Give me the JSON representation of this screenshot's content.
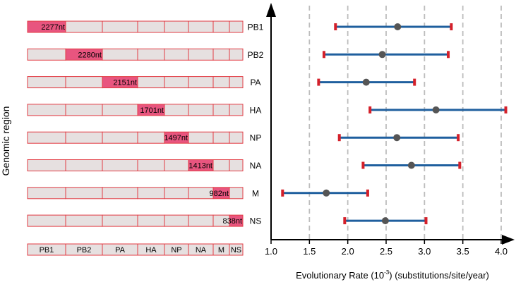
{
  "chart_data": {
    "type": "scatter",
    "ylabel": "Genomic region",
    "xlabel": {
      "prefix": "Evolutionary Rate (10",
      "exponent": "-3",
      "suffix": ") (substitutions/site/year)"
    },
    "xlim": [
      1.0,
      4.0
    ],
    "xticks": [
      "1.0",
      "1.5",
      "2.0",
      "2.5",
      "3.0",
      "3.5",
      "4.0"
    ],
    "grid": "vertical dashed",
    "segments_order": [
      "PB1",
      "PB2",
      "PA",
      "HA",
      "NP",
      "NA",
      "M",
      "NS"
    ],
    "regions": [
      {
        "name": "PB1",
        "length_label": "2277nt",
        "mean": 2.65,
        "lower": 1.84,
        "upper": 3.35
      },
      {
        "name": "PB2",
        "length_label": "2280nt",
        "mean": 2.45,
        "lower": 1.69,
        "upper": 3.31
      },
      {
        "name": "PA",
        "length_label": "2151nt",
        "mean": 2.24,
        "lower": 1.62,
        "upper": 2.87
      },
      {
        "name": "HA",
        "length_label": "1701nt",
        "mean": 3.15,
        "lower": 2.29,
        "upper": 4.06
      },
      {
        "name": "NP",
        "length_label": "1497nt",
        "mean": 2.64,
        "lower": 1.89,
        "upper": 3.44
      },
      {
        "name": "NA",
        "length_label": "1413nt",
        "mean": 2.83,
        "lower": 2.2,
        "upper": 3.46
      },
      {
        "name": "M",
        "length_label": "982nt",
        "mean": 1.72,
        "lower": 1.15,
        "upper": 2.26
      },
      {
        "name": "NS",
        "length_label": "838nt",
        "mean": 2.49,
        "lower": 1.96,
        "upper": 3.02
      }
    ],
    "colors": {
      "highlight": "#e8557f",
      "segment_fill": "#e6e0e0",
      "segment_stroke": "#e23b43",
      "interval_line": "#1f5f9e",
      "interval_cap": "#d4202a",
      "mean_point": "#555555",
      "grid": "#bdbdbd"
    }
  }
}
